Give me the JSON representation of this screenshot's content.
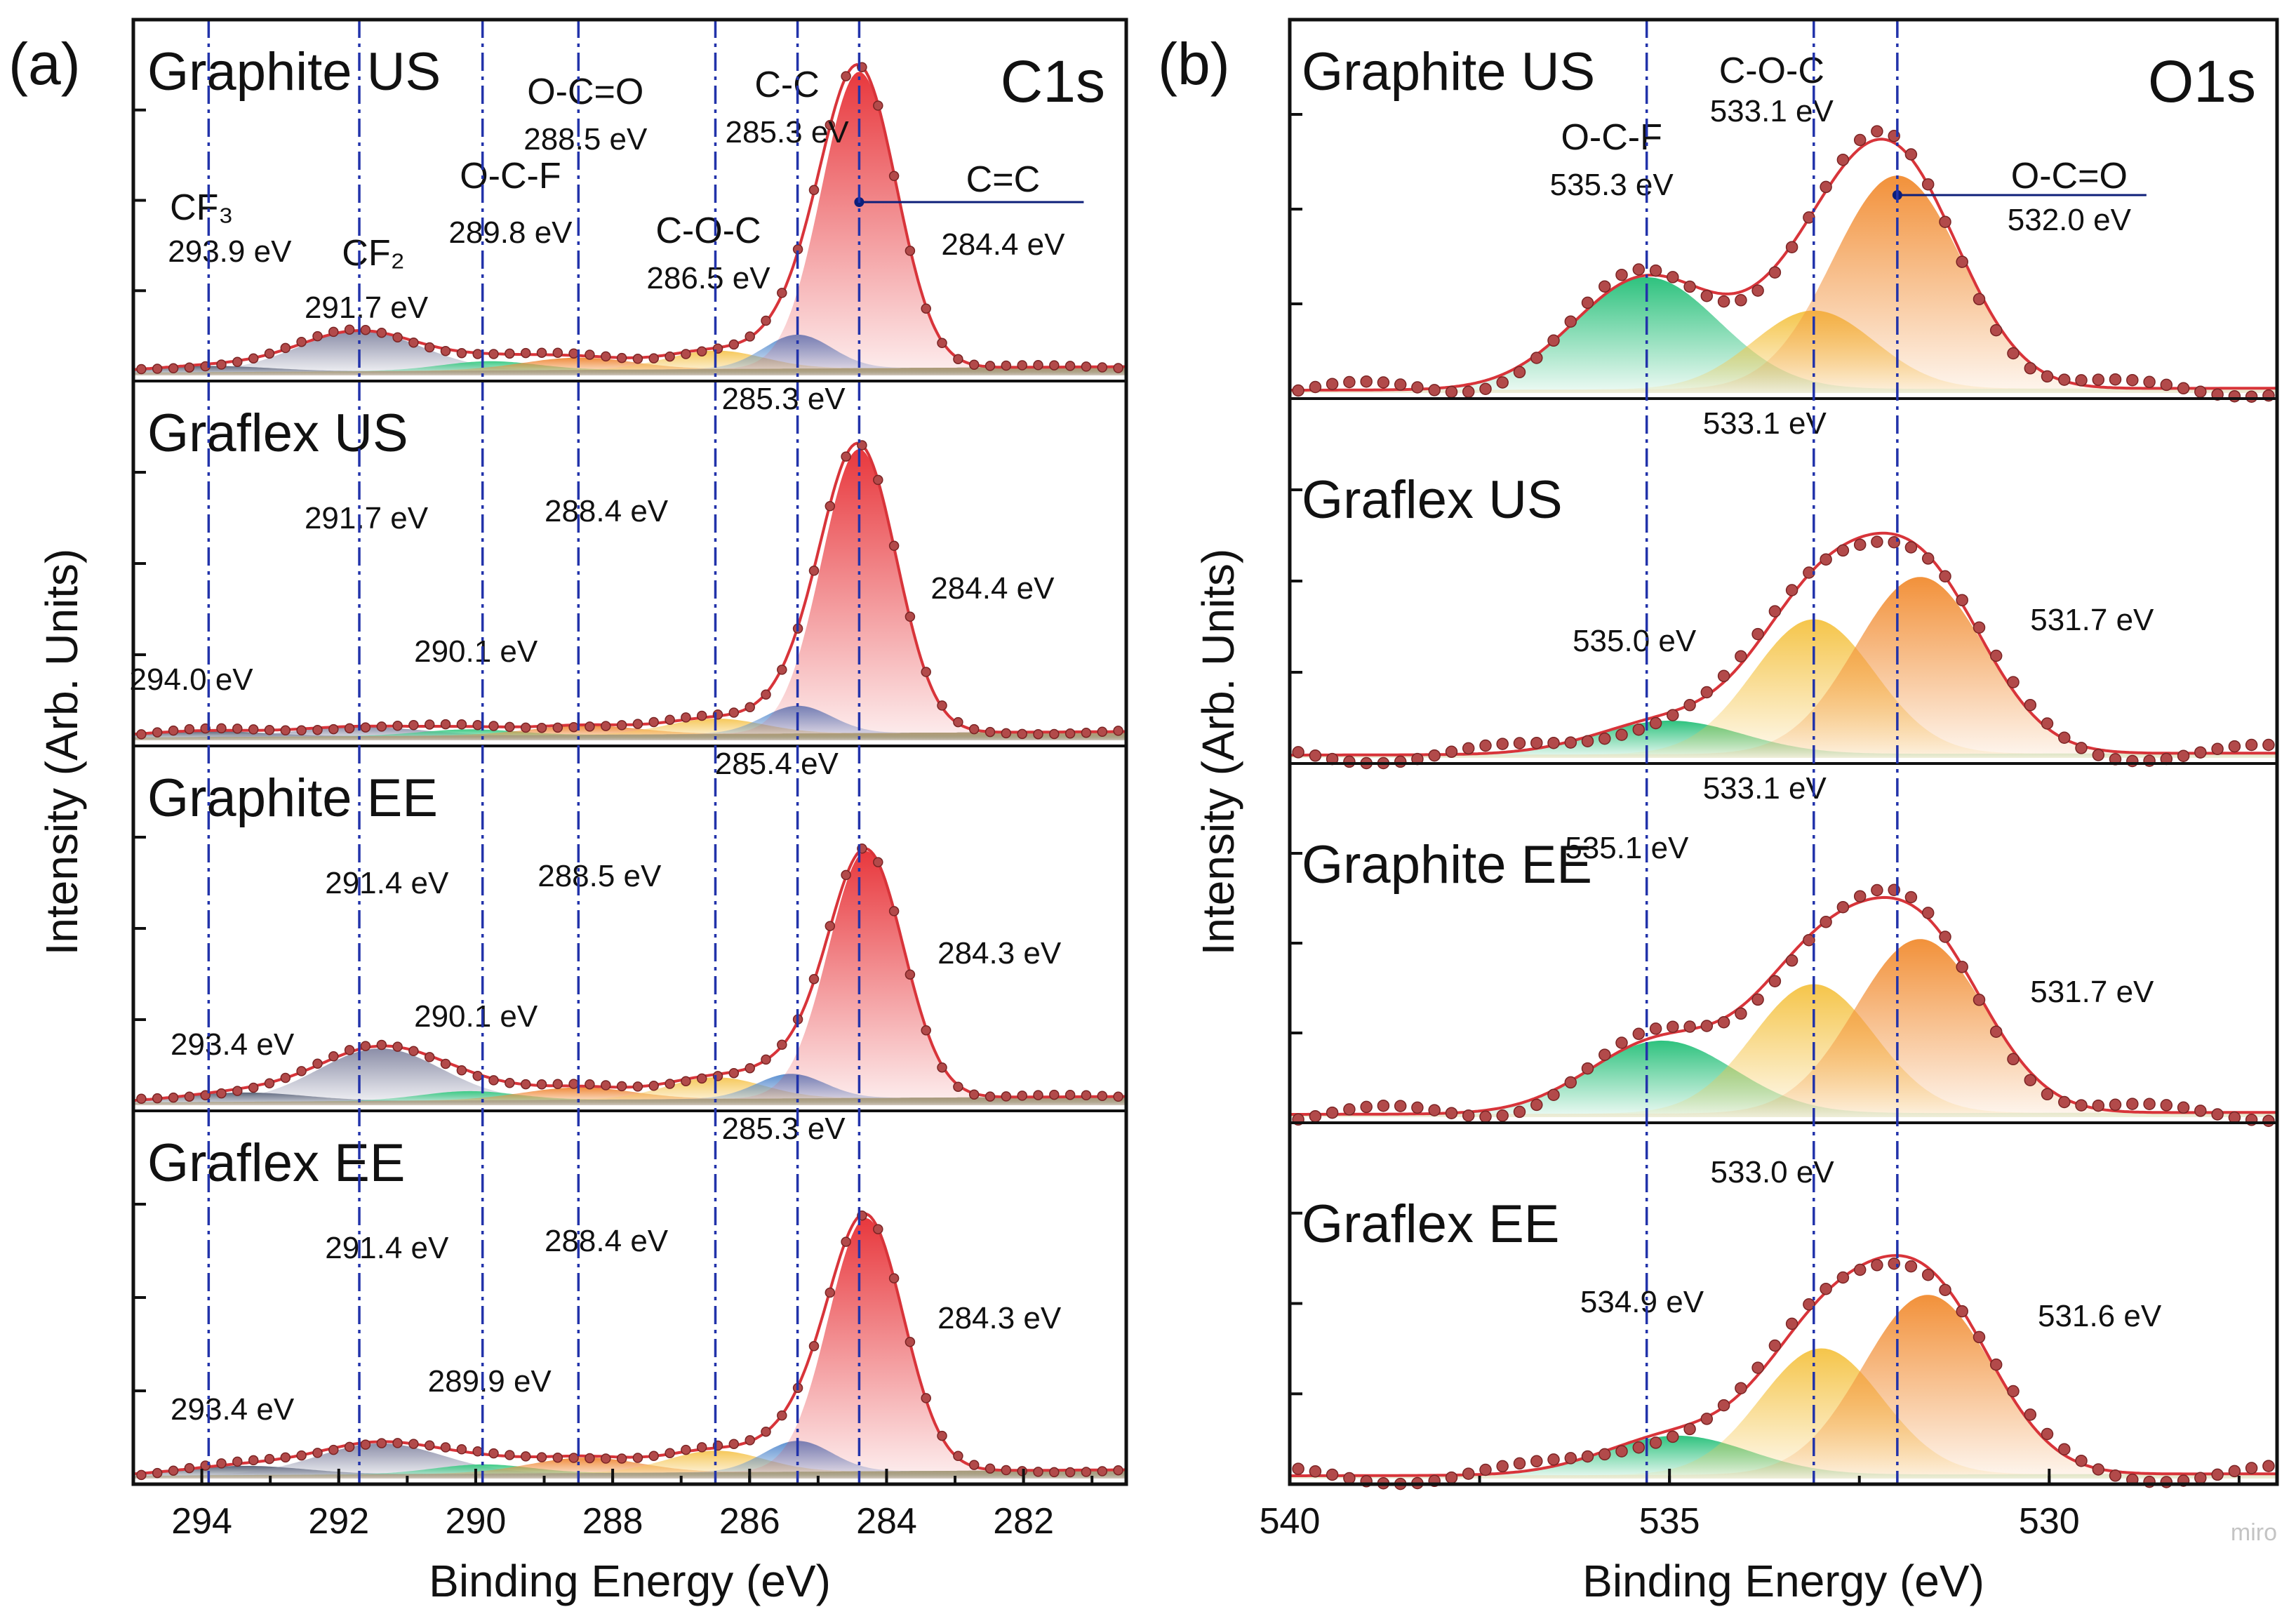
{
  "chart_data": [
    {
      "type": "line",
      "panel_label": "(a)",
      "title": "C1s",
      "xlabel": "Binding Energy (eV)",
      "ylabel": "Intensity (Arb. Units)",
      "xlim": [
        295,
        280.5
      ],
      "xticks": [
        294,
        292,
        290,
        288,
        286,
        284,
        282
      ],
      "reference_lines_ev": [
        293.9,
        291.7,
        289.9,
        288.5,
        286.5,
        285.3,
        284.4
      ],
      "stacks": [
        {
          "name": "Graphite US",
          "species": [
            {
              "label": "CF₃",
              "center": 293.9,
              "label_ev": "293.9 eV",
              "height": 0.02,
              "width": 0.9,
              "color": "#5a6478"
            },
            {
              "label": "CF₂",
              "center": 291.7,
              "label_ev": "291.7 eV",
              "height": 0.13,
              "width": 0.9,
              "color": "#8b8ea8"
            },
            {
              "label": "O-C-F",
              "center": 289.8,
              "label_ev": "289.8 eV",
              "height": 0.03,
              "width": 0.7,
              "color": "#3ecb86"
            },
            {
              "label": "O-C=O",
              "center": 288.5,
              "label_ev": "288.5 eV",
              "height": 0.04,
              "width": 0.8,
              "color": "#f08c3c"
            },
            {
              "label": "C-O-C",
              "center": 286.5,
              "label_ev": "286.5 eV",
              "height": 0.06,
              "width": 0.7,
              "color": "#f6c85a"
            },
            {
              "label": "C-C",
              "center": 285.3,
              "label_ev": "285.3 eV",
              "height": 0.11,
              "width": 0.5,
              "color": "#5b8fd0"
            },
            {
              "label": "C=C",
              "center": 284.4,
              "label_ev": "284.4 eV",
              "height": 0.96,
              "width": 0.55,
              "color": "#e8383d"
            }
          ]
        },
        {
          "name": "Graflex US",
          "species": [
            {
              "label": "CF₃",
              "center": 294.0,
              "label_ev": "294.0 eV",
              "height": 0.02,
              "width": 0.9,
              "color": "#5a6478"
            },
            {
              "label": "CF₂",
              "center": 291.7,
              "label_ev": "291.7 eV",
              "height": 0.03,
              "width": 0.9,
              "color": "#8b8ea8"
            },
            {
              "label": "O-C-F",
              "center": 290.1,
              "label_ev": "290.1 eV",
              "height": 0.02,
              "width": 0.7,
              "color": "#3ecb86"
            },
            {
              "label": "O-C=O",
              "center": 288.4,
              "label_ev": "288.4 eV",
              "height": 0.03,
              "width": 0.8,
              "color": "#f08c3c"
            },
            {
              "label": "C-O-C",
              "center": 286.5,
              "label_ev": "",
              "height": 0.05,
              "width": 0.7,
              "color": "#f6c85a"
            },
            {
              "label": "C-C",
              "center": 285.3,
              "label_ev": "285.3 eV",
              "height": 0.09,
              "width": 0.5,
              "color": "#5b8fd0"
            },
            {
              "label": "C=C",
              "center": 284.4,
              "label_ev": "284.4 eV",
              "height": 0.92,
              "width": 0.55,
              "color": "#e8383d"
            }
          ]
        },
        {
          "name": "Graphite EE",
          "species": [
            {
              "label": "CF₃",
              "center": 293.4,
              "label_ev": "293.4 eV",
              "height": 0.03,
              "width": 0.9,
              "color": "#5a6478"
            },
            {
              "label": "CF₂",
              "center": 291.4,
              "label_ev": "291.4 eV",
              "height": 0.17,
              "width": 0.9,
              "color": "#8b8ea8"
            },
            {
              "label": "O-C-F",
              "center": 290.1,
              "label_ev": "290.1 eV",
              "height": 0.03,
              "width": 0.7,
              "color": "#3ecb86"
            },
            {
              "label": "O-C=O",
              "center": 288.5,
              "label_ev": "288.5 eV",
              "height": 0.04,
              "width": 0.8,
              "color": "#f08c3c"
            },
            {
              "label": "C-O-C",
              "center": 286.5,
              "label_ev": "",
              "height": 0.07,
              "width": 0.7,
              "color": "#f6c85a"
            },
            {
              "label": "C-C",
              "center": 285.4,
              "label_ev": "285.4 eV",
              "height": 0.08,
              "width": 0.5,
              "color": "#5b8fd0"
            },
            {
              "label": "C=C",
              "center": 284.3,
              "label_ev": "284.3 eV",
              "height": 0.8,
              "width": 0.55,
              "color": "#e8383d"
            }
          ]
        },
        {
          "name": "Graflex EE",
          "species": [
            {
              "label": "CF₃",
              "center": 293.4,
              "label_ev": "293.4 eV",
              "height": 0.03,
              "width": 0.9,
              "color": "#5a6478"
            },
            {
              "label": "CF₂",
              "center": 291.4,
              "label_ev": "291.4 eV",
              "height": 0.1,
              "width": 0.9,
              "color": "#8b8ea8"
            },
            {
              "label": "O-C-F",
              "center": 289.9,
              "label_ev": "289.9 eV",
              "height": 0.03,
              "width": 0.7,
              "color": "#3ecb86"
            },
            {
              "label": "O-C=O",
              "center": 288.4,
              "label_ev": "288.4 eV",
              "height": 0.05,
              "width": 0.8,
              "color": "#f08c3c"
            },
            {
              "label": "C-O-C",
              "center": 286.5,
              "label_ev": "",
              "height": 0.07,
              "width": 0.7,
              "color": "#f6c85a"
            },
            {
              "label": "C-C",
              "center": 285.3,
              "label_ev": "285.3 eV",
              "height": 0.1,
              "width": 0.5,
              "color": "#5b8fd0"
            },
            {
              "label": "C=C",
              "center": 284.3,
              "label_ev": "284.3 eV",
              "height": 0.82,
              "width": 0.55,
              "color": "#e8383d"
            }
          ]
        }
      ]
    },
    {
      "type": "line",
      "panel_label": "(b)",
      "title": "O1s",
      "xlabel": "Binding Energy (eV)",
      "ylabel": "Intensity (Arb. Units)",
      "xlim": [
        540,
        527.0
      ],
      "xticks": [
        540,
        535,
        530
      ],
      "reference_lines_ev": [
        535.3,
        533.1,
        532.0
      ],
      "stacks": [
        {
          "name": "Graphite US",
          "species": [
            {
              "label": "O-C-F",
              "center": 535.3,
              "label_ev": "535.3 eV",
              "height": 0.4,
              "width": 0.95,
              "color": "#2ec27e"
            },
            {
              "label": "C-O-C",
              "center": 533.1,
              "label_ev": "533.1 eV",
              "height": 0.28,
              "width": 0.8,
              "color": "#f5c54a"
            },
            {
              "label": "O-C=O",
              "center": 532.0,
              "label_ev": "532.0 eV",
              "height": 0.76,
              "width": 0.85,
              "color": "#f2913a"
            }
          ]
        },
        {
          "name": "Graflex US",
          "species": [
            {
              "label": "O-C-F",
              "center": 535.0,
              "label_ev": "535.0 eV",
              "height": 0.12,
              "width": 0.95,
              "color": "#2ec27e"
            },
            {
              "label": "C-O-C",
              "center": 533.1,
              "label_ev": "533.1 eV",
              "height": 0.48,
              "width": 0.8,
              "color": "#f5c54a"
            },
            {
              "label": "O-C=O",
              "center": 531.7,
              "label_ev": "531.7 eV",
              "height": 0.63,
              "width": 0.85,
              "color": "#f2913a"
            }
          ]
        },
        {
          "name": "Graphite EE",
          "species": [
            {
              "label": "O-C-F",
              "center": 535.1,
              "label_ev": "535.1 eV",
              "height": 0.26,
              "width": 0.95,
              "color": "#2ec27e"
            },
            {
              "label": "C-O-C",
              "center": 533.1,
              "label_ev": "533.1 eV",
              "height": 0.46,
              "width": 0.8,
              "color": "#f5c54a"
            },
            {
              "label": "O-C=O",
              "center": 531.7,
              "label_ev": "531.7 eV",
              "height": 0.62,
              "width": 0.85,
              "color": "#f2913a"
            }
          ]
        },
        {
          "name": "Graflex EE",
          "species": [
            {
              "label": "O-C-F",
              "center": 534.9,
              "label_ev": "534.9 eV",
              "height": 0.14,
              "width": 0.95,
              "color": "#2ec27e"
            },
            {
              "label": "C-O-C",
              "center": 533.0,
              "label_ev": "533.0 eV",
              "height": 0.45,
              "width": 0.8,
              "color": "#f5c54a"
            },
            {
              "label": "O-C=O",
              "center": 531.6,
              "label_ev": "531.6 eV",
              "height": 0.64,
              "width": 0.85,
              "color": "#f2913a"
            }
          ]
        }
      ]
    }
  ],
  "colors": {
    "envelope": "#d8343a",
    "data_points": "#b24a4a",
    "reference_lines": "#2233aa",
    "marker": "#0d1f7a"
  },
  "watermark": "miro"
}
